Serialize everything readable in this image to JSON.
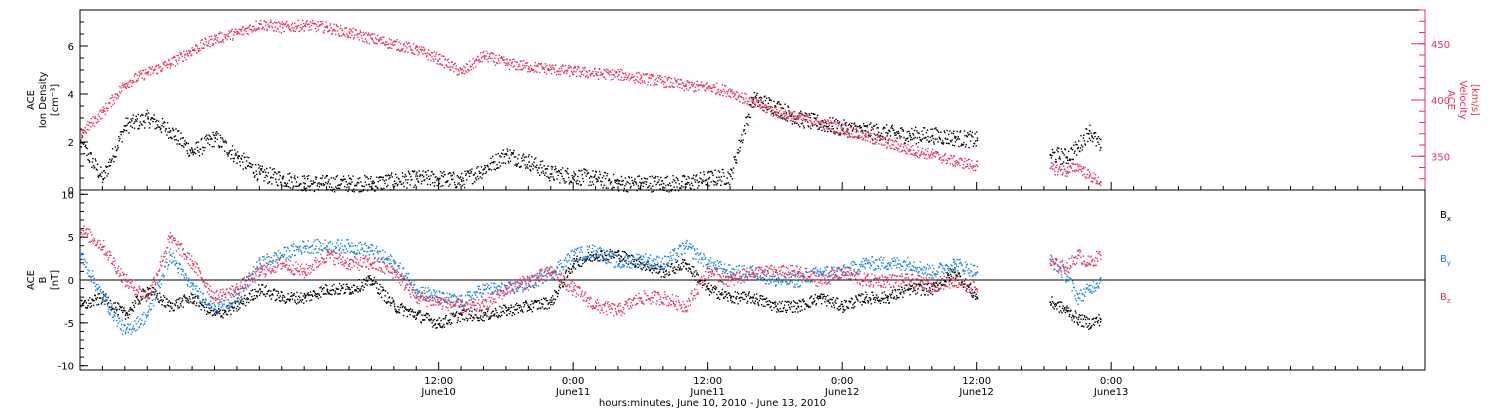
{
  "colors": {
    "black": "#000000",
    "red": "#e8335a",
    "blue": "#1c86e6"
  },
  "chart_data": [
    {
      "type": "scatter",
      "panel": "top",
      "ylabel_lines": [
        "ACE",
        "Ion Density",
        "[cm⁻³]"
      ],
      "y2label_lines": [
        "ACE",
        "Velocity",
        "[km/s]"
      ],
      "ylim": [
        0,
        7.5
      ],
      "y2lim": [
        320,
        480
      ],
      "yticks": [
        0,
        2,
        4,
        6
      ],
      "y2ticks": [
        350,
        400,
        450
      ],
      "xlim": [
        -20,
        100
      ],
      "gap": [
        60,
        66.5
      ],
      "series": [
        {
          "key": "density",
          "axis": "left",
          "color": "#000000",
          "x": [
            -20,
            -18,
            -16,
            -14,
            -12,
            -10,
            -8,
            -6,
            -4,
            -2,
            0,
            2,
            4,
            6,
            8,
            10,
            12,
            14,
            16,
            18,
            20,
            22,
            24,
            26,
            28,
            30,
            32,
            34,
            36,
            38,
            40,
            42,
            44,
            46,
            48,
            50,
            52,
            54,
            56,
            58,
            60,
            66.5,
            68,
            69,
            70,
            71
          ],
          "y": [
            2.0,
            0.5,
            2.7,
            3.0,
            2.5,
            1.6,
            2.2,
            1.4,
            0.7,
            0.5,
            0.3,
            0.3,
            0.3,
            0.3,
            0.4,
            0.5,
            0.5,
            0.4,
            0.9,
            1.5,
            1.2,
            0.7,
            0.6,
            0.5,
            0.3,
            0.3,
            0.3,
            0.3,
            0.5,
            0.6,
            3.8,
            3.5,
            3.0,
            2.8,
            2.6,
            2.5,
            2.4,
            2.3,
            2.3,
            2.2,
            2.1,
            1.5,
            1.4,
            1.8,
            2.5,
            1.8
          ]
        },
        {
          "key": "velocity",
          "axis": "right",
          "color": "#e8335a",
          "x": [
            -20,
            -18,
            -16,
            -14,
            -12,
            -10,
            -8,
            -6,
            -4,
            -2,
            0,
            2,
            4,
            6,
            8,
            10,
            12,
            14,
            16,
            18,
            20,
            22,
            24,
            26,
            28,
            30,
            32,
            34,
            36,
            38,
            40,
            42,
            44,
            46,
            48,
            50,
            52,
            54,
            56,
            58,
            60,
            66.5,
            68,
            69,
            70,
            71
          ],
          "y": [
            370,
            390,
            415,
            425,
            433,
            445,
            455,
            460,
            468,
            465,
            467,
            465,
            460,
            455,
            450,
            445,
            437,
            425,
            440,
            433,
            430,
            428,
            426,
            424,
            423,
            420,
            417,
            413,
            412,
            408,
            398,
            390,
            385,
            380,
            375,
            368,
            362,
            356,
            352,
            346,
            342,
            340,
            337,
            342,
            333,
            328
          ]
        }
      ]
    },
    {
      "type": "scatter",
      "panel": "bottom",
      "ylabel_lines": [
        "ACE",
        "B",
        "[nT]"
      ],
      "ylim": [
        -10.5,
        10.5
      ],
      "yticks": [
        -10,
        -5,
        0,
        5,
        10
      ],
      "xlim": [
        -20,
        100
      ],
      "gap": [
        60,
        66.5
      ],
      "series": [
        {
          "key": "bx",
          "name": "Bx",
          "label_sub": "x",
          "color": "#000000",
          "x": [
            -20,
            -18,
            -16,
            -14,
            -12,
            -10,
            -8,
            -6,
            -4,
            -2,
            0,
            2,
            4,
            6,
            8,
            10,
            12,
            14,
            16,
            18,
            20,
            22,
            24,
            26,
            28,
            30,
            32,
            34,
            36,
            38,
            40,
            42,
            44,
            46,
            48,
            50,
            52,
            54,
            56,
            58,
            60,
            66.5,
            68,
            69,
            70,
            71
          ],
          "y": [
            -3,
            -2,
            -4,
            -1,
            -3,
            -2,
            -4,
            -3,
            -1,
            -2,
            -2,
            -1,
            -1,
            0,
            -3,
            -4,
            -5,
            -4,
            -4,
            -3.5,
            -3,
            -2.5,
            2,
            3,
            3,
            2,
            1,
            2,
            -1,
            -2,
            -2,
            -3,
            -3,
            -2,
            -3,
            -2,
            -2,
            -1,
            -1,
            1,
            -2,
            -2.5,
            -3.5,
            -4.5,
            -5,
            -4.5
          ]
        },
        {
          "key": "by",
          "name": "By",
          "label_sub": "y",
          "color": "#1c86e6",
          "x": [
            -20,
            -18,
            -16,
            -14,
            -12,
            -10,
            -8,
            -6,
            -4,
            -2,
            0,
            2,
            4,
            6,
            8,
            10,
            12,
            14,
            16,
            18,
            20,
            22,
            24,
            26,
            28,
            30,
            32,
            34,
            36,
            38,
            40,
            42,
            44,
            46,
            48,
            50,
            52,
            54,
            56,
            58,
            60,
            66.5,
            68,
            69,
            70,
            71
          ],
          "y": [
            3,
            -2,
            -6,
            -4,
            3,
            -1,
            -3,
            -2,
            2,
            3,
            4,
            4,
            4,
            3.5,
            2,
            -1,
            -2,
            -2.5,
            -1,
            -1,
            -0.5,
            1,
            3,
            3.5,
            2,
            2.5,
            2,
            4,
            2,
            1,
            1,
            0,
            0,
            1,
            1,
            2,
            2,
            2,
            1,
            2,
            1,
            2.5,
            0.5,
            -2,
            -1,
            0
          ]
        },
        {
          "key": "bz",
          "name": "Bz",
          "label_sub": "z",
          "color": "#e8335a",
          "x": [
            -20,
            -18,
            -16,
            -14,
            -12,
            -10,
            -8,
            -6,
            -4,
            -2,
            0,
            2,
            4,
            6,
            8,
            10,
            12,
            14,
            16,
            18,
            20,
            22,
            24,
            26,
            28,
            30,
            32,
            34,
            36,
            38,
            40,
            42,
            44,
            46,
            48,
            50,
            52,
            54,
            56,
            58,
            60,
            66.5,
            68,
            69,
            70,
            71
          ],
          "y": [
            6,
            4,
            0,
            -2,
            5,
            2,
            -2,
            -1,
            1,
            2,
            1,
            3,
            2,
            2,
            1,
            -2,
            -2.5,
            -3,
            -3,
            -1,
            0,
            1,
            -1,
            -3,
            -3.5,
            -2,
            -2,
            -3,
            1,
            0,
            1,
            1,
            1,
            0,
            1,
            0,
            0,
            0,
            -0.5,
            0,
            -1,
            2,
            1.5,
            3,
            2,
            3
          ]
        }
      ]
    }
  ],
  "x_axis": {
    "ticks": [
      {
        "label": "12:00",
        "sublabel": "June10",
        "x": 12
      },
      {
        "label": "0:00",
        "sublabel": "June11",
        "x": 24
      },
      {
        "label": "12:00",
        "sublabel": "June11",
        "x": 36
      },
      {
        "label": "0:00",
        "sublabel": "June12",
        "x": 48
      },
      {
        "label": "12:00",
        "sublabel": "June12",
        "x": 60
      },
      {
        "label": "0:00",
        "sublabel": "June13",
        "x": 72
      }
    ],
    "xlabel": "hours:minutes, June 10, 2010 - June 13, 2010"
  },
  "legend": {
    "bx_main": "B",
    "by_main": "B",
    "bz_main": "B"
  }
}
